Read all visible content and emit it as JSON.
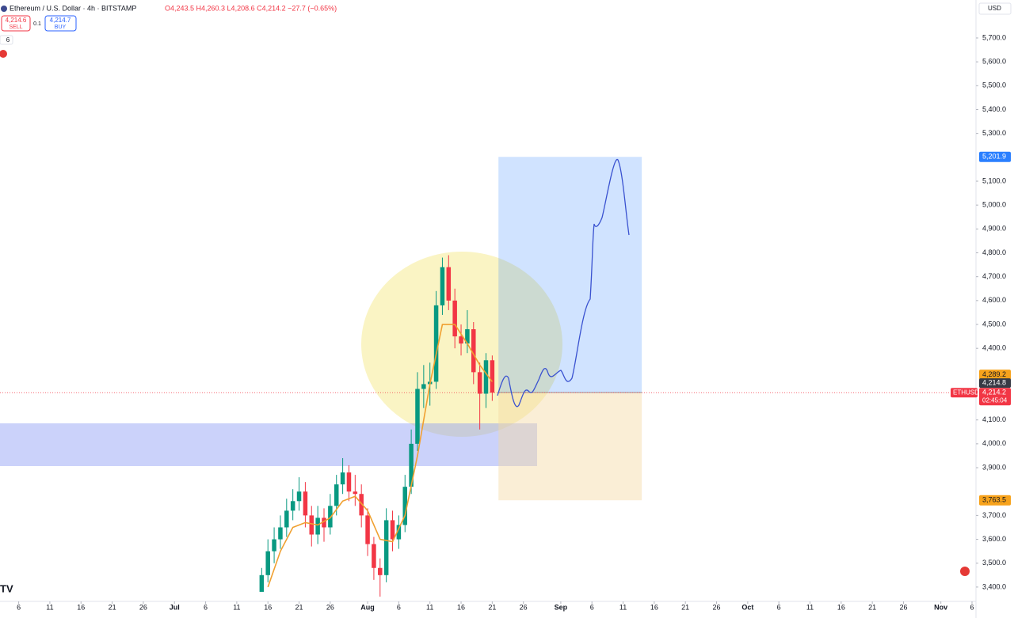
{
  "chart_data": {
    "type": "candlestick",
    "header": {
      "symbol": "Ethereum / U.S. Dollar · 4h · BITSTAMP",
      "ohlc": "O4,243.5 H4,260.3 L4,208.6 C4,214.2 −27.7 (−0.65%)",
      "sell_price": "4,214.6",
      "sell": "SELL",
      "spread": "0.1",
      "buy_price": "4,214.7",
      "buy": "BUY",
      "indicators": "6",
      "currency": "USD"
    },
    "xlim": [
      "Jun 3",
      "Nov 6"
    ],
    "ylim": [
      3340,
      5859
    ],
    "xticks": [
      {
        "value": "Jun 6",
        "label": "6"
      },
      {
        "value": "Jun 11",
        "label": "11"
      },
      {
        "value": "Jun 16",
        "label": "16"
      },
      {
        "value": "Jun 21",
        "label": "21"
      },
      {
        "value": "Jun 26",
        "label": "26"
      },
      {
        "value": "Jul 1",
        "label": "Jul"
      },
      {
        "value": "Jul 6",
        "label": "6"
      },
      {
        "value": "Jul 11",
        "label": "11"
      },
      {
        "value": "Jul 16",
        "label": "16"
      },
      {
        "value": "Jul 21",
        "label": "21"
      },
      {
        "value": "Jul 26",
        "label": "26"
      },
      {
        "value": "Aug 1",
        "label": "Aug"
      },
      {
        "value": "Aug 6",
        "label": "6"
      },
      {
        "value": "Aug 11",
        "label": "11"
      },
      {
        "value": "Aug 16",
        "label": "16"
      },
      {
        "value": "Aug 21",
        "label": "21"
      },
      {
        "value": "Aug 26",
        "label": "26"
      },
      {
        "value": "Sep 1",
        "label": "Sep"
      },
      {
        "value": "Sep 6",
        "label": "6"
      },
      {
        "value": "Sep 11",
        "label": "11"
      },
      {
        "value": "Sep 16",
        "label": "16"
      },
      {
        "value": "Sep 21",
        "label": "21"
      },
      {
        "value": "Sep 26",
        "label": "26"
      },
      {
        "value": "Oct 1",
        "label": "Oct"
      },
      {
        "value": "Oct 6",
        "label": "6"
      },
      {
        "value": "Oct 11",
        "label": "11"
      },
      {
        "value": "Oct 16",
        "label": "16"
      },
      {
        "value": "Oct 21",
        "label": "21"
      },
      {
        "value": "Oct 26",
        "label": "26"
      },
      {
        "value": "Nov 1",
        "label": "Nov"
      },
      {
        "value": "Nov 6",
        "label": "6"
      }
    ],
    "yticks": [
      {
        "value": 5700,
        "label": "5,700.0"
      },
      {
        "value": 5600,
        "label": "5,600.0"
      },
      {
        "value": 5500,
        "label": "5,500.0"
      },
      {
        "value": 5400,
        "label": "5,400.0"
      },
      {
        "value": 5300,
        "label": "5,300.0"
      },
      {
        "value": 5100,
        "label": "5,100.0"
      },
      {
        "value": 5000,
        "label": "5,000.0"
      },
      {
        "value": 4900,
        "label": "4,900.0"
      },
      {
        "value": 4800,
        "label": "4,800.0"
      },
      {
        "value": 4700,
        "label": "4,700.0"
      },
      {
        "value": 4600,
        "label": "4,600.0"
      },
      {
        "value": 4500,
        "label": "4,500.0"
      },
      {
        "value": 4400,
        "label": "4,400.0"
      },
      {
        "value": 4100,
        "label": "4,100.0"
      },
      {
        "value": 4000,
        "label": "4,000.0"
      },
      {
        "value": 3900,
        "label": "3,900.0"
      },
      {
        "value": 3700,
        "label": "3,700.0"
      },
      {
        "value": 3600,
        "label": "3,600.0"
      },
      {
        "value": 3500,
        "label": "3,500.0"
      },
      {
        "value": 3400,
        "label": "3,400.0"
      }
    ],
    "up_color": "#089981",
    "down_color": "#f23645",
    "candles": [
      {
        "date": "Jul 15",
        "open": 3380,
        "high": 3480,
        "low": 3390,
        "close": 3450
      },
      {
        "date": "Jul 16",
        "open": 3450,
        "high": 3600,
        "low": 3420,
        "close": 3550
      },
      {
        "date": "Jul 17",
        "open": 3550,
        "high": 3650,
        "low": 3500,
        "close": 3600
      },
      {
        "date": "Jul 18",
        "open": 3600,
        "high": 3700,
        "low": 3560,
        "close": 3650
      },
      {
        "date": "Jul 19",
        "open": 3650,
        "high": 3770,
        "low": 3610,
        "close": 3720
      },
      {
        "date": "Jul 20",
        "open": 3720,
        "high": 3810,
        "low": 3680,
        "close": 3760
      },
      {
        "date": "Jul 21",
        "open": 3760,
        "high": 3860,
        "low": 3720,
        "close": 3800
      },
      {
        "date": "Jul 22",
        "open": 3800,
        "high": 3840,
        "low": 3650,
        "close": 3700
      },
      {
        "date": "Jul 23",
        "open": 3700,
        "high": 3740,
        "low": 3570,
        "close": 3620
      },
      {
        "date": "Jul 24",
        "open": 3620,
        "high": 3740,
        "low": 3580,
        "close": 3690
      },
      {
        "date": "Jul 25",
        "open": 3690,
        "high": 3730,
        "low": 3590,
        "close": 3650
      },
      {
        "date": "Jul 26",
        "open": 3650,
        "high": 3790,
        "low": 3620,
        "close": 3740
      },
      {
        "date": "Jul 27",
        "open": 3740,
        "high": 3870,
        "low": 3700,
        "close": 3830
      },
      {
        "date": "Jul 28",
        "open": 3830,
        "high": 3940,
        "low": 3790,
        "close": 3880
      },
      {
        "date": "Jul 29",
        "open": 3880,
        "high": 3910,
        "low": 3760,
        "close": 3800
      },
      {
        "date": "Jul 30",
        "open": 3800,
        "high": 3870,
        "low": 3740,
        "close": 3790
      },
      {
        "date": "Jul 31",
        "open": 3790,
        "high": 3830,
        "low": 3650,
        "close": 3700
      },
      {
        "date": "Aug 1",
        "open": 3700,
        "high": 3730,
        "low": 3530,
        "close": 3580
      },
      {
        "date": "Aug 2",
        "open": 3580,
        "high": 3610,
        "low": 3430,
        "close": 3480
      },
      {
        "date": "Aug 3",
        "open": 3480,
        "high": 3520,
        "low": 3360,
        "close": 3450
      },
      {
        "date": "Aug 4",
        "open": 3450,
        "high": 3730,
        "low": 3420,
        "close": 3680
      },
      {
        "date": "Aug 5",
        "open": 3680,
        "high": 3720,
        "low": 3550,
        "close": 3600
      },
      {
        "date": "Aug 6",
        "open": 3600,
        "high": 3700,
        "low": 3560,
        "close": 3660
      },
      {
        "date": "Aug 7",
        "open": 3660,
        "high": 3870,
        "low": 3630,
        "close": 3820
      },
      {
        "date": "Aug 8",
        "open": 3820,
        "high": 4060,
        "low": 3790,
        "close": 4000
      },
      {
        "date": "Aug 9",
        "open": 4000,
        "high": 4300,
        "low": 3970,
        "close": 4230
      },
      {
        "date": "Aug 10",
        "open": 4230,
        "high": 4330,
        "low": 4150,
        "close": 4250
      },
      {
        "date": "Aug 11",
        "open": 4250,
        "high": 4340,
        "low": 4160,
        "close": 4260
      },
      {
        "date": "Aug 12",
        "open": 4260,
        "high": 4640,
        "low": 4230,
        "close": 4580
      },
      {
        "date": "Aug 13",
        "open": 4580,
        "high": 4780,
        "low": 4540,
        "close": 4740
      },
      {
        "date": "Aug 14",
        "open": 4740,
        "high": 4790,
        "low": 4560,
        "close": 4600
      },
      {
        "date": "Aug 15",
        "open": 4600,
        "high": 4650,
        "low": 4400,
        "close": 4450
      },
      {
        "date": "Aug 16",
        "open": 4450,
        "high": 4500,
        "low": 4370,
        "close": 4420
      },
      {
        "date": "Aug 17",
        "open": 4420,
        "high": 4560,
        "low": 4380,
        "close": 4480
      },
      {
        "date": "Aug 18",
        "open": 4480,
        "high": 4510,
        "low": 4250,
        "close": 4300
      },
      {
        "date": "Aug 19",
        "open": 4300,
        "high": 4340,
        "low": 4060,
        "close": 4210
      },
      {
        "date": "Aug 20",
        "open": 4210,
        "high": 4380,
        "low": 4150,
        "close": 4350
      },
      {
        "date": "Aug 21",
        "open": 4350,
        "high": 4370,
        "low": 4180,
        "close": 4214.2
      }
    ],
    "ma": {
      "color": "#f0a030",
      "x": [
        "Jul 16",
        "Jul 18",
        "Jul 20",
        "Jul 22",
        "Jul 24",
        "Jul 26",
        "Jul 28",
        "Jul 30",
        "Aug 1",
        "Aug 3",
        "Aug 5",
        "Aug 7",
        "Aug 9",
        "Aug 11",
        "Aug 13",
        "Aug 15",
        "Aug 17",
        "Aug 19",
        "Aug 21"
      ],
      "values": [
        3400,
        3550,
        3650,
        3670,
        3660,
        3690,
        3760,
        3780,
        3720,
        3600,
        3590,
        3700,
        3950,
        4250,
        4500,
        4500,
        4420,
        4330,
        4260
      ]
    },
    "position": {
      "start": "Aug 22",
      "end": "Sep 14",
      "target": 5201.9,
      "entry": 4214.8,
      "stop": 3763.5,
      "target_label": "5,201.9",
      "entry_label": "4,214.8",
      "stop_label": "3,763.5"
    },
    "price_labels": [
      {
        "value": 4289.2,
        "label": "4,289.2",
        "color": "#f7a21b"
      },
      {
        "value": 4214.2,
        "label": "4,214.2",
        "color": "#f23645",
        "symbol": "ETHUSD",
        "countdown": "02:45:04"
      }
    ]
  }
}
